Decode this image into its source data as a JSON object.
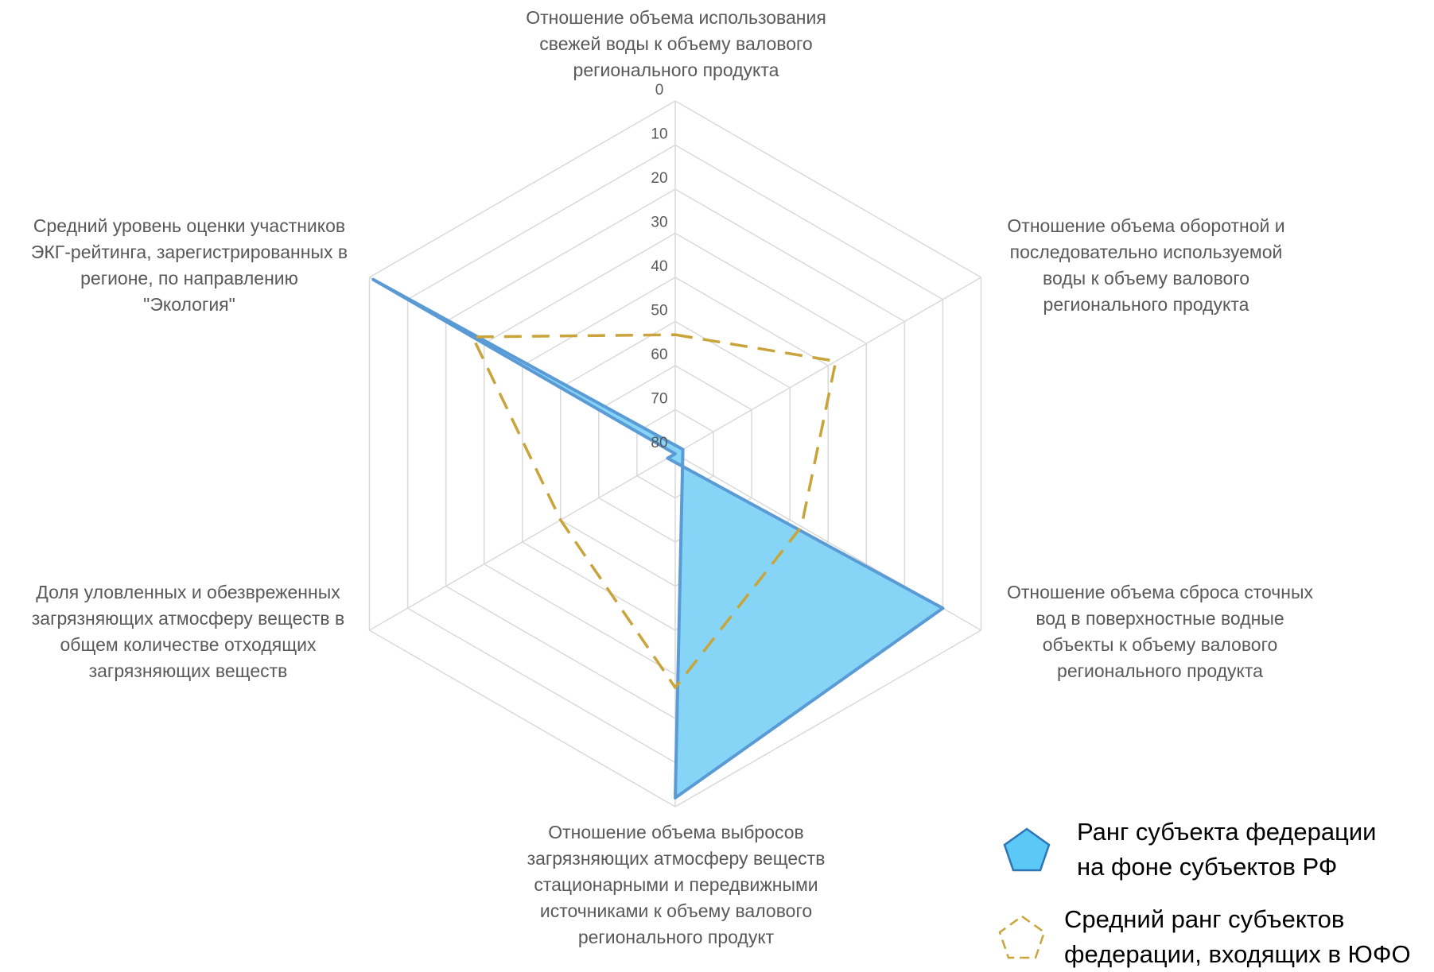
{
  "chart_data": {
    "type": "radar",
    "reversed_axis": true,
    "rlim": [
      0,
      80
    ],
    "ticks": [
      0,
      10,
      20,
      30,
      40,
      50,
      60,
      70,
      80
    ],
    "categories": [
      "Отношение объема использования\nсвежей воды к объему валового\nрегионального продукта",
      "Отношение объема оборотной и\nпоследовательно используемой\nводы к объему валового\nрегионального продукта",
      "Отношение объема сброса сточных\nвод в поверхностные водные\nобъекты к объему валового\nрегионального продукта",
      "Отношение объема выбросов\nзагрязняющих атмосферу веществ\nстационарными и передвижными\nисточниками к объему валового\nрегионального продукт",
      "Доля уловленных и обезвреженных\nзагрязняющих атмосферу веществ в\nобщем количестве отходящих\nзагрязняющих веществ",
      "Средний уровень оценки участников\nЭКГ-рейтинга, зарегистрированных в\nрегионе, по направлению\n\"Экология\""
    ],
    "series": [
      {
        "name": "Ранг субъекта федерации\nна фоне субъектов РФ",
        "values": [
          80,
          82,
          10,
          2,
          82,
          1
        ],
        "color": "#5b9bd5",
        "fill": "#7fd3f7",
        "style": "filled"
      },
      {
        "name": "Средний ранг субъектов\nфедерации, входящих в ЮФО",
        "values": [
          53,
          38,
          47,
          27,
          50,
          27
        ],
        "color": "#c9a43b",
        "style": "dashed"
      }
    ],
    "grid": true,
    "legend_position": "bottom-right"
  }
}
